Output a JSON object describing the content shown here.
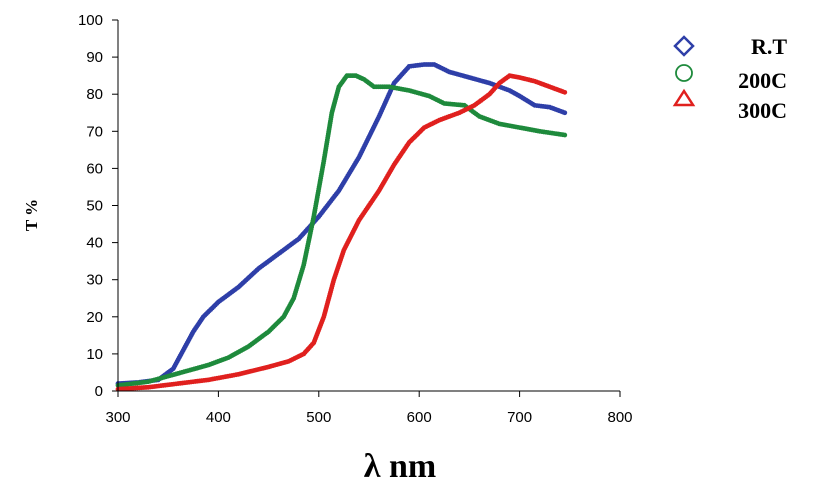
{
  "chart_data": {
    "type": "scatter",
    "title": "",
    "xlabel": "λ nm",
    "ylabel": "T %",
    "xlim": [
      300,
      800
    ],
    "ylim": [
      0,
      100
    ],
    "x_ticks": [
      300,
      400,
      500,
      600,
      700,
      800
    ],
    "y_ticks": [
      0,
      10,
      20,
      30,
      40,
      50,
      60,
      70,
      80,
      90,
      100
    ],
    "grid": false,
    "legend_position": "top-right",
    "series": [
      {
        "name": "R.T",
        "color": "#2e3fa8",
        "marker": "diamond",
        "points": [
          [
            300,
            2
          ],
          [
            320,
            2.3
          ],
          [
            340,
            3
          ],
          [
            355,
            6
          ],
          [
            365,
            11
          ],
          [
            375,
            16
          ],
          [
            385,
            20
          ],
          [
            400,
            24
          ],
          [
            420,
            28
          ],
          [
            440,
            33
          ],
          [
            460,
            37
          ],
          [
            480,
            41
          ],
          [
            500,
            47
          ],
          [
            520,
            54
          ],
          [
            540,
            63
          ],
          [
            560,
            74
          ],
          [
            575,
            83
          ],
          [
            590,
            87.5
          ],
          [
            605,
            88
          ],
          [
            615,
            88
          ],
          [
            630,
            86
          ],
          [
            650,
            84.5
          ],
          [
            670,
            83
          ],
          [
            690,
            81
          ],
          [
            700,
            79.5
          ],
          [
            715,
            77
          ],
          [
            730,
            76.5
          ],
          [
            745,
            75
          ]
        ]
      },
      {
        "name": "200C",
        "color": "#1e8a3c",
        "marker": "circle",
        "points": [
          [
            300,
            1.5
          ],
          [
            330,
            2.5
          ],
          [
            350,
            4
          ],
          [
            370,
            5.5
          ],
          [
            390,
            7
          ],
          [
            410,
            9
          ],
          [
            430,
            12
          ],
          [
            450,
            16
          ],
          [
            465,
            20
          ],
          [
            475,
            25
          ],
          [
            485,
            34
          ],
          [
            495,
            47
          ],
          [
            505,
            62
          ],
          [
            513,
            75
          ],
          [
            520,
            82
          ],
          [
            528,
            85
          ],
          [
            537,
            85
          ],
          [
            545,
            84
          ],
          [
            555,
            82
          ],
          [
            570,
            82
          ],
          [
            590,
            81
          ],
          [
            610,
            79.5
          ],
          [
            625,
            77.5
          ],
          [
            645,
            77
          ],
          [
            660,
            74
          ],
          [
            680,
            72
          ],
          [
            700,
            71
          ],
          [
            720,
            70
          ],
          [
            745,
            69
          ]
        ]
      },
      {
        "name": "300C",
        "color": "#e0201e",
        "marker": "triangle",
        "points": [
          [
            300,
            0.5
          ],
          [
            330,
            1
          ],
          [
            360,
            2
          ],
          [
            390,
            3
          ],
          [
            420,
            4.5
          ],
          [
            450,
            6.5
          ],
          [
            470,
            8
          ],
          [
            485,
            10
          ],
          [
            495,
            13
          ],
          [
            505,
            20
          ],
          [
            515,
            30
          ],
          [
            525,
            38
          ],
          [
            540,
            46
          ],
          [
            560,
            54
          ],
          [
            575,
            61
          ],
          [
            590,
            67
          ],
          [
            605,
            71
          ],
          [
            620,
            73
          ],
          [
            640,
            75
          ],
          [
            655,
            77
          ],
          [
            670,
            80
          ],
          [
            680,
            83
          ],
          [
            690,
            85
          ],
          [
            700,
            84.5
          ],
          [
            715,
            83.5
          ],
          [
            730,
            82
          ],
          [
            745,
            80.5
          ]
        ]
      }
    ]
  }
}
